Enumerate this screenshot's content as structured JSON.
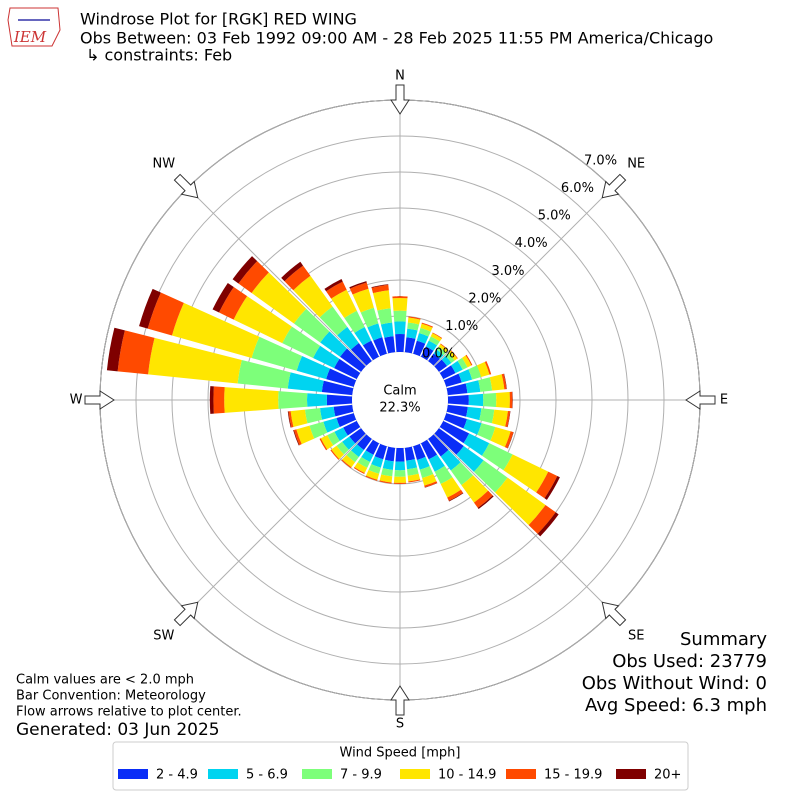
{
  "chart_data": {
    "type": "windrose",
    "title_lines": [
      "Windrose Plot for [RGK] RED WING",
      "Obs Between: 03 Feb 1992 09:00 AM - 28 Feb 2025 11:55 PM America/Chicago",
      "↳ constraints: Feb"
    ],
    "logo_text": "IEM",
    "compass_labels": [
      "N",
      "NE",
      "E",
      "SE",
      "S",
      "SW",
      "W",
      "NW"
    ],
    "directions": [
      0,
      10,
      20,
      30,
      40,
      50,
      60,
      70,
      80,
      90,
      100,
      110,
      120,
      130,
      140,
      150,
      160,
      170,
      180,
      190,
      200,
      210,
      220,
      230,
      240,
      250,
      260,
      270,
      280,
      290,
      300,
      310,
      320,
      330,
      340,
      350
    ],
    "rlim": [
      0,
      7
    ],
    "rticks": [
      {
        "value": 0,
        "label": "0.0%"
      },
      {
        "value": 1,
        "label": "1.0%"
      },
      {
        "value": 2,
        "label": "2.0%"
      },
      {
        "value": 3,
        "label": "3.0%"
      },
      {
        "value": 4,
        "label": "4.0%"
      },
      {
        "value": 5,
        "label": "5.0%"
      },
      {
        "value": 6,
        "label": "6.0%"
      },
      {
        "value": 7,
        "label": "7.0%"
      }
    ],
    "grid": true,
    "calm": {
      "label": "Calm",
      "value": 22.3,
      "value_label": "22.3%"
    },
    "legend_title": "Wind Speed [mph]",
    "series": [
      {
        "name": "2 - 4.9",
        "color": "#0a2df7",
        "values": [
          0.5,
          0.42,
          0.38,
          0.32,
          0.26,
          0.28,
          0.38,
          0.45,
          0.55,
          0.58,
          0.56,
          0.6,
          0.8,
          0.85,
          0.6,
          0.5,
          0.4,
          0.36,
          0.38,
          0.38,
          0.38,
          0.36,
          0.38,
          0.4,
          0.42,
          0.5,
          0.52,
          0.7,
          0.85,
          0.8,
          0.7,
          0.72,
          0.62,
          0.5,
          0.48,
          0.45
        ]
      },
      {
        "name": "5 - 6.9",
        "color": "#00d4f0",
        "values": [
          0.35,
          0.24,
          0.22,
          0.18,
          0.14,
          0.15,
          0.22,
          0.3,
          0.36,
          0.4,
          0.38,
          0.42,
          0.62,
          0.68,
          0.48,
          0.38,
          0.28,
          0.24,
          0.24,
          0.24,
          0.24,
          0.22,
          0.24,
          0.25,
          0.27,
          0.38,
          0.38,
          0.55,
          0.95,
          0.85,
          0.65,
          0.68,
          0.55,
          0.42,
          0.4,
          0.38
        ]
      },
      {
        "name": "7 - 9.9",
        "color": "#7dff7a",
        "values": [
          0.3,
          0.17,
          0.15,
          0.13,
          0.1,
          0.11,
          0.15,
          0.26,
          0.33,
          0.36,
          0.36,
          0.4,
          0.72,
          0.82,
          0.5,
          0.38,
          0.24,
          0.18,
          0.18,
          0.18,
          0.18,
          0.18,
          0.18,
          0.19,
          0.22,
          0.4,
          0.42,
          0.8,
          1.4,
          1.3,
          0.95,
          0.9,
          0.7,
          0.5,
          0.45,
          0.4
        ]
      },
      {
        "name": "10 - 14.9",
        "color": "#ffe600",
        "values": [
          0.35,
          0.14,
          0.12,
          0.1,
          0.08,
          0.09,
          0.12,
          0.24,
          0.34,
          0.38,
          0.38,
          0.44,
          1.1,
          1.3,
          0.6,
          0.42,
          0.22,
          0.16,
          0.17,
          0.17,
          0.17,
          0.16,
          0.17,
          0.18,
          0.2,
          0.38,
          0.4,
          1.5,
          2.5,
          2.3,
          1.5,
          1.45,
          1.05,
          0.65,
          0.55,
          0.5
        ]
      },
      {
        "name": "15 - 19.9",
        "color": "#ff4a00",
        "values": [
          0.05,
          0.03,
          0.03,
          0.02,
          0.02,
          0.02,
          0.03,
          0.05,
          0.06,
          0.07,
          0.06,
          0.08,
          0.28,
          0.35,
          0.18,
          0.1,
          0.05,
          0.03,
          0.03,
          0.03,
          0.03,
          0.03,
          0.03,
          0.03,
          0.04,
          0.07,
          0.06,
          0.3,
          0.85,
          0.7,
          0.45,
          0.45,
          0.35,
          0.25,
          0.18,
          0.15
        ]
      },
      {
        "name": "20+",
        "color": "#7f0000",
        "values": [
          0,
          0,
          0,
          0,
          0,
          0,
          0,
          0,
          0.01,
          0.01,
          0.01,
          0.01,
          0.08,
          0.1,
          0.04,
          0.02,
          0.01,
          0,
          0,
          0,
          0,
          0,
          0,
          0,
          0,
          0.02,
          0.02,
          0.1,
          0.3,
          0.25,
          0.2,
          0.2,
          0.13,
          0.08,
          0.04,
          0.02
        ]
      }
    ],
    "summary_lines": [
      "Summary",
      "Obs Used: 23779",
      "Obs Without Wind: 0",
      "Avg Speed: 6.3 mph"
    ],
    "notes": [
      "Calm values are < 2.0 mph",
      "Bar Convention: Meteorology",
      "Flow arrows relative to plot center."
    ],
    "generated": "Generated: 03 Jun 2025"
  }
}
